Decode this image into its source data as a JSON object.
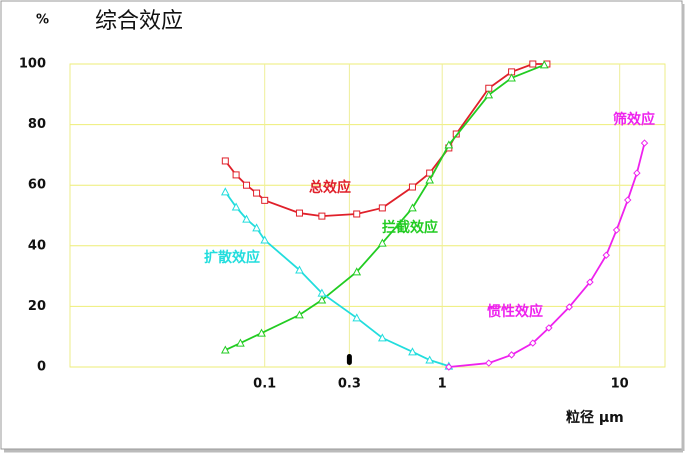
{
  "chart_data": {
    "type": "line",
    "title": "综合效应",
    "y_axis_label": "%",
    "x_axis_label": "粒径 μm",
    "log_x": true,
    "grid": true,
    "xlim": [
      0.008,
      18
    ],
    "xticks": [
      0.1,
      0.3,
      1,
      10
    ],
    "ylim": [
      0,
      100
    ],
    "yticks": [
      0,
      20,
      40,
      60,
      80,
      100
    ],
    "series": [
      {
        "name": "总效应",
        "color": "#e0202a",
        "marker": "square",
        "x": [
          0.06,
          0.069,
          0.079,
          0.09,
          0.1,
          0.157,
          0.21,
          0.33,
          0.46,
          0.68,
          0.85,
          1.09,
          1.2,
          1.83,
          2.46,
          3.24,
          3.89
        ],
        "values": [
          68,
          63.4,
          60,
          57.4,
          55,
          50.8,
          49.8,
          50.5,
          52.5,
          59.4,
          64,
          72.3,
          76.9,
          92,
          97.4,
          100,
          100
        ]
      },
      {
        "name": "拦截效应",
        "color": "#22cc22",
        "marker": "triangle",
        "x": [
          0.06,
          0.073,
          0.096,
          0.157,
          0.21,
          0.33,
          0.46,
          0.68,
          0.85,
          1.09,
          1.83,
          2.46,
          3.76
        ],
        "values": [
          5.6,
          7.9,
          11.2,
          17.2,
          22.1,
          31.4,
          40.9,
          52.5,
          61.7,
          73.3,
          89.8,
          95.4,
          99.7
        ]
      },
      {
        "name": "扩散效应",
        "color": "#22dddd",
        "marker": "triangle",
        "x": [
          0.06,
          0.069,
          0.079,
          0.09,
          0.1,
          0.157,
          0.21,
          0.33,
          0.46,
          0.68,
          0.85,
          1.09
        ],
        "values": [
          57.8,
          52.8,
          48.8,
          45.9,
          41.9,
          32,
          24.4,
          16.2,
          9.6,
          5,
          2.3,
          0.3
        ]
      },
      {
        "name": "惯性效应",
        "color": "#ee22ee",
        "marker": "diamond",
        "x": [
          1.09,
          1.83,
          2.46,
          3.24,
          3.99,
          5.2,
          6.8,
          8.4,
          9.6,
          11.1,
          12.5,
          13.8
        ],
        "values": [
          0,
          1.3,
          4,
          7.9,
          12.9,
          19.8,
          28,
          36.9,
          45.2,
          55.1,
          64,
          73.9
        ]
      }
    ],
    "annotations": [
      {
        "text": "筛效应",
        "color": "#ee22ee"
      }
    ]
  }
}
